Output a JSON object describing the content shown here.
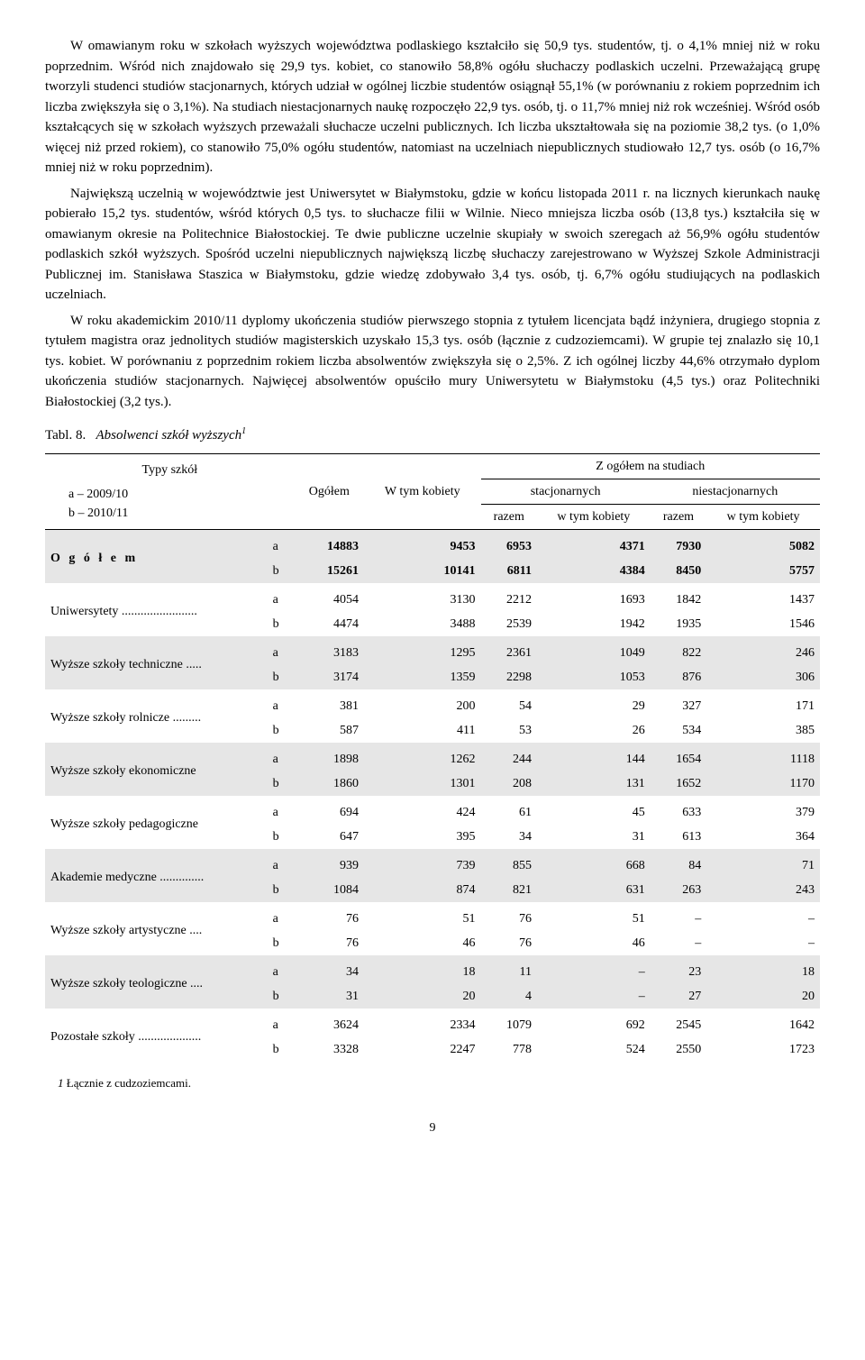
{
  "paragraphs": [
    "W omawianym roku w szkołach wyższych województwa podlaskiego kształciło się 50,9 tys. studentów, tj. o 4,1% mniej niż w roku poprzednim. Wśród nich znajdowało się 29,9 tys. kobiet, co stanowiło 58,8% ogółu słuchaczy podlaskich uczelni. Przeważającą grupę tworzyli studenci studiów stacjonarnych, których udział w ogólnej liczbie studentów osiągnął 55,1% (w porównaniu z rokiem poprzednim ich liczba zwiększyła się o 3,1%). Na studiach niestacjonarnych naukę rozpoczęło 22,9 tys. osób, tj. o 11,7% mniej niż rok wcześniej. Wśród osób kształcących się w szkołach wyższych przeważali słuchacze uczelni publicznych. Ich liczba ukształtowała się na poziomie 38,2 tys. (o 1,0% więcej niż przed rokiem), co stanowiło 75,0% ogółu studentów, natomiast na uczelniach niepublicznych studiowało 12,7 tys. osób (o 16,7% mniej niż w roku poprzednim).",
    "Największą uczelnią w województwie jest Uniwersytet w Białymstoku, gdzie w końcu listopada 2011 r. na licznych kierunkach naukę pobierało 15,2 tys. studentów, wśród których 0,5 tys. to słuchacze filii w Wilnie. Nieco mniejsza liczba osób (13,8 tys.) kształciła się w omawianym okresie na Politechnice Białostockiej. Te dwie publiczne uczelnie skupiały w swoich szeregach aż 56,9% ogółu studentów podlaskich szkół wyższych. Spośród uczelni niepublicznych największą liczbę słuchaczy zarejestrowano w Wyższej Szkole Administracji Publicznej im. Stanisława Staszica w Białymstoku, gdzie wiedzę zdobywało 3,4 tys. osób, tj. 6,7% ogółu studiujących na podlaskich uczelniach.",
    "W roku akademickim 2010/11 dyplomy ukończenia studiów pierwszego stopnia z tytułem licencjata bądź inżyniera, drugiego stopnia z tytułem magistra oraz jednolitych studiów magisterskich uzyskało 15,3 tys. osób (łącznie z cudzoziemcami). W grupie tej znalazło się 10,1 tys. kobiet. W porównaniu z poprzednim rokiem liczba absolwentów zwiększyła się o 2,5%. Z ich ogólnej liczby 44,6% otrzymało dyplom ukończenia studiów stacjonarnych. Najwięcej absolwentów opuściło mury Uniwersytetu w Białymstoku (4,5 tys.) oraz Politechniki Białostockiej (3,2 tys.)."
  ],
  "table_label": "Tabl. 8.",
  "table_caption": "Absolwenci szkół wyższych",
  "table_caption_sup": "1",
  "header": {
    "col_typy": "Typy szkół",
    "col_a": "a – 2009/10",
    "col_b": "b – 2010/11",
    "col_ogolem": "Ogółem",
    "col_wtym": "W tym kobiety",
    "col_zogolem": "Z ogółem na studiach",
    "col_stacjon": "stacjonarnych",
    "col_niestacjon": "niestacjonarnych",
    "col_razem": "razem",
    "col_wtymk": "w tym kobiety"
  },
  "rows": [
    {
      "label": "O g ó ł e m",
      "dots": "...........................",
      "a": [
        "14883",
        "9453",
        "6953",
        "4371",
        "7930",
        "5082"
      ],
      "b": [
        "15261",
        "10141",
        "6811",
        "4384",
        "8450",
        "5757"
      ],
      "bold": true
    },
    {
      "label": "Uniwersytety",
      "dots": "........................",
      "a": [
        "4054",
        "3130",
        "2212",
        "1693",
        "1842",
        "1437"
      ],
      "b": [
        "4474",
        "3488",
        "2539",
        "1942",
        "1935",
        "1546"
      ]
    },
    {
      "label": "Wyższe szkoły techniczne",
      "dots": ".....",
      "a": [
        "3183",
        "1295",
        "2361",
        "1049",
        "822",
        "246"
      ],
      "b": [
        "3174",
        "1359",
        "2298",
        "1053",
        "876",
        "306"
      ]
    },
    {
      "label": "Wyższe szkoły rolnicze",
      "dots": ".........",
      "a": [
        "381",
        "200",
        "54",
        "29",
        "327",
        "171"
      ],
      "b": [
        "587",
        "411",
        "53",
        "26",
        "534",
        "385"
      ]
    },
    {
      "label": "Wyższe szkoły ekonomiczne",
      "dots": "",
      "a": [
        "1898",
        "1262",
        "244",
        "144",
        "1654",
        "1118"
      ],
      "b": [
        "1860",
        "1301",
        "208",
        "131",
        "1652",
        "1170"
      ]
    },
    {
      "label": "Wyższe szkoły pedagogiczne",
      "dots": "",
      "a": [
        "694",
        "424",
        "61",
        "45",
        "633",
        "379"
      ],
      "b": [
        "647",
        "395",
        "34",
        "31",
        "613",
        "364"
      ]
    },
    {
      "label": "Akademie medyczne",
      "dots": "..............",
      "a": [
        "939",
        "739",
        "855",
        "668",
        "84",
        "71"
      ],
      "b": [
        "1084",
        "874",
        "821",
        "631",
        "263",
        "243"
      ]
    },
    {
      "label": "Wyższe szkoły artystyczne",
      "dots": "....",
      "a": [
        "76",
        "51",
        "76",
        "51",
        "–",
        "–"
      ],
      "b": [
        "76",
        "46",
        "76",
        "46",
        "–",
        "–"
      ]
    },
    {
      "label": "Wyższe szkoły teologiczne",
      "dots": "....",
      "a": [
        "34",
        "18",
        "11",
        "–",
        "23",
        "18"
      ],
      "b": [
        "31",
        "20",
        "4",
        "–",
        "27",
        "20"
      ]
    },
    {
      "label": "Pozostałe szkoły",
      "dots": "....................",
      "a": [
        "3624",
        "2334",
        "1079",
        "692",
        "2545",
        "1642"
      ],
      "b": [
        "3328",
        "2247",
        "778",
        "524",
        "2550",
        "1723"
      ]
    }
  ],
  "footnote_marker": "1",
  "footnote_text": "Łącznie z cudzoziemcami.",
  "page_number": "9"
}
